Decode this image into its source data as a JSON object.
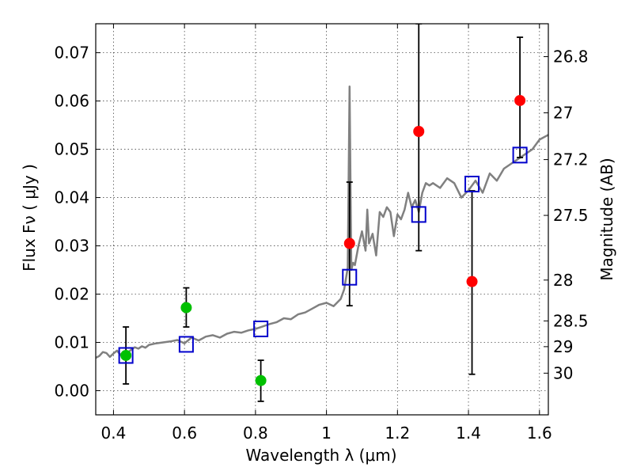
{
  "chart_data": {
    "type": "scatter",
    "xlabel": "Wavelength  λ (μm)",
    "ylabel": "Flux  Fν  ( μJy )",
    "y2label": "Magnitude (AB)",
    "xlim": [
      0.35,
      1.625
    ],
    "ylim": [
      -0.005,
      0.076
    ],
    "grid": true,
    "x_ticks": [
      {
        "value": 0.4,
        "label": "0.4"
      },
      {
        "value": 0.6,
        "label": "0.6"
      },
      {
        "value": 0.8,
        "label": "0.8"
      },
      {
        "value": 1.0,
        "label": "1"
      },
      {
        "value": 1.2,
        "label": "1.2"
      },
      {
        "value": 1.4,
        "label": "1.4"
      },
      {
        "value": 1.6,
        "label": "1.6"
      }
    ],
    "y_ticks": [
      {
        "value": 0.0,
        "label": "0.00"
      },
      {
        "value": 0.01,
        "label": "0.01"
      },
      {
        "value": 0.02,
        "label": "0.02"
      },
      {
        "value": 0.03,
        "label": "0.03"
      },
      {
        "value": 0.04,
        "label": "0.04"
      },
      {
        "value": 0.05,
        "label": "0.05"
      },
      {
        "value": 0.06,
        "label": "0.06"
      },
      {
        "value": 0.07,
        "label": "0.07"
      }
    ],
    "mag_ticks": [
      {
        "value": 26.8,
        "label": "26.8"
      },
      {
        "value": 27.0,
        "label": "27"
      },
      {
        "value": 27.2,
        "label": "27.2"
      },
      {
        "value": 27.5,
        "label": "27.5"
      },
      {
        "value": 28.0,
        "label": "28"
      },
      {
        "value": 28.5,
        "label": "28.5"
      },
      {
        "value": 29.0,
        "label": "29"
      },
      {
        "value": 30.0,
        "label": "30"
      }
    ],
    "series": [
      {
        "kind": "line",
        "color": "#808080",
        "x": [
          0.35,
          0.36,
          0.37,
          0.38,
          0.39,
          0.4,
          0.41,
          0.42,
          0.43,
          0.44,
          0.45,
          0.46,
          0.47,
          0.48,
          0.49,
          0.5,
          0.52,
          0.54,
          0.56,
          0.58,
          0.6,
          0.62,
          0.64,
          0.66,
          0.68,
          0.7,
          0.72,
          0.74,
          0.76,
          0.78,
          0.8,
          0.82,
          0.84,
          0.86,
          0.88,
          0.9,
          0.92,
          0.94,
          0.96,
          0.98,
          1.0,
          1.02,
          1.04,
          1.05,
          1.06,
          1.065,
          1.07,
          1.075,
          1.08,
          1.09,
          1.1,
          1.11,
          1.115,
          1.12,
          1.13,
          1.14,
          1.15,
          1.16,
          1.17,
          1.18,
          1.19,
          1.2,
          1.21,
          1.22,
          1.23,
          1.24,
          1.25,
          1.26,
          1.27,
          1.28,
          1.29,
          1.3,
          1.32,
          1.34,
          1.36,
          1.38,
          1.4,
          1.42,
          1.44,
          1.46,
          1.48,
          1.5,
          1.52,
          1.54,
          1.56,
          1.58,
          1.6,
          1.625
        ],
        "y": [
          0.0068,
          0.0072,
          0.008,
          0.0078,
          0.007,
          0.0077,
          0.0083,
          0.0074,
          0.0081,
          0.0079,
          0.0085,
          0.009,
          0.0087,
          0.0092,
          0.0089,
          0.0095,
          0.0098,
          0.01,
          0.0102,
          0.0105,
          0.0098,
          0.011,
          0.0104,
          0.0112,
          0.0115,
          0.011,
          0.0118,
          0.0122,
          0.012,
          0.0125,
          0.0128,
          0.0133,
          0.0138,
          0.0142,
          0.015,
          0.0148,
          0.0158,
          0.0162,
          0.017,
          0.0178,
          0.0182,
          0.0175,
          0.019,
          0.021,
          0.0255,
          0.063,
          0.025,
          0.0265,
          0.026,
          0.03,
          0.033,
          0.029,
          0.0375,
          0.0305,
          0.0325,
          0.028,
          0.037,
          0.036,
          0.038,
          0.037,
          0.032,
          0.0365,
          0.0355,
          0.0375,
          0.041,
          0.038,
          0.0395,
          0.037,
          0.041,
          0.043,
          0.0425,
          0.043,
          0.042,
          0.044,
          0.043,
          0.04,
          0.0415,
          0.0435,
          0.041,
          0.045,
          0.0435,
          0.046,
          0.047,
          0.048,
          0.049,
          0.05,
          0.052,
          0.053
        ]
      },
      {
        "kind": "points",
        "marker": "circle",
        "color": "#00c000",
        "x": [
          0.435,
          0.605,
          0.815
        ],
        "y": [
          0.0073,
          0.0172,
          0.0021
        ],
        "yerr_lo": [
          0.0014,
          0.0132,
          -0.0022
        ],
        "yerr_hi": [
          0.0132,
          0.0213,
          0.0063
        ]
      },
      {
        "kind": "points",
        "marker": "circle",
        "color": "#ff0000",
        "x": [
          1.065,
          1.26,
          1.41,
          1.545
        ],
        "y": [
          0.0305,
          0.0537,
          0.0226,
          0.0601
        ],
        "yerr_lo": [
          0.0176,
          0.029,
          0.0034,
          0.0483
        ],
        "yerr_hi": [
          0.0432,
          0.076,
          0.0414,
          0.0732
        ]
      },
      {
        "kind": "points",
        "marker": "square",
        "color": "#0000cc",
        "x": [
          0.435,
          0.605,
          0.815,
          1.065,
          1.26,
          1.41,
          1.545
        ],
        "y": [
          0.0073,
          0.0096,
          0.0128,
          0.0235,
          0.0365,
          0.0428,
          0.0488
        ]
      }
    ]
  }
}
